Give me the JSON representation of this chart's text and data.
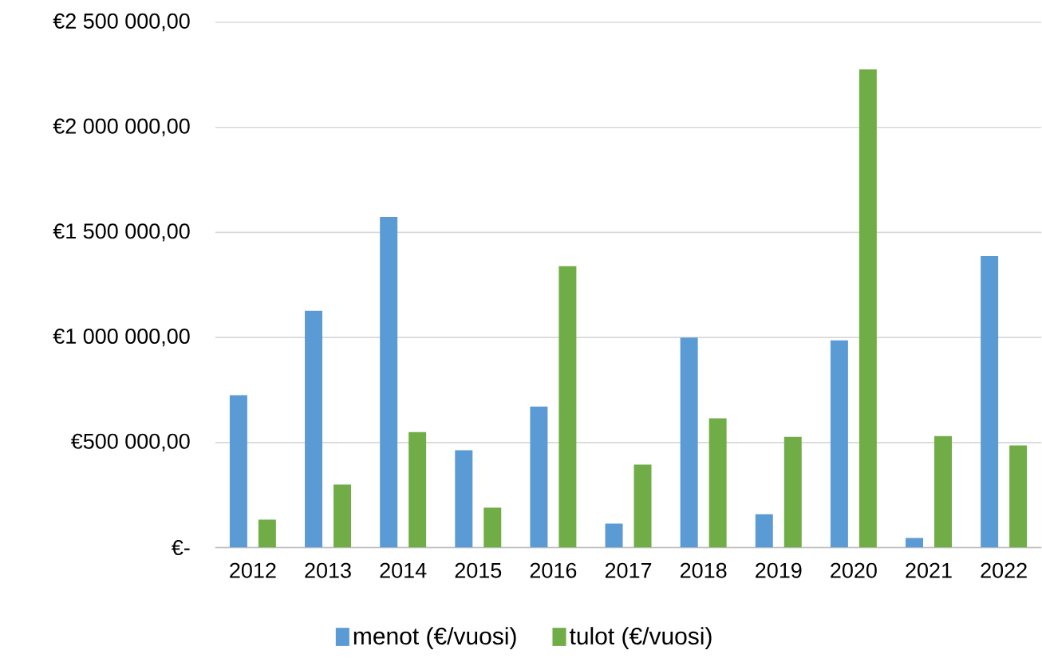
{
  "chart_data": {
    "type": "bar",
    "categories": [
      "2012",
      "2013",
      "2014",
      "2015",
      "2016",
      "2017",
      "2018",
      "2019",
      "2020",
      "2021",
      "2022"
    ],
    "series": [
      {
        "name": "menot (€/vuosi)",
        "color": "#5b9bd5",
        "values": [
          725000,
          1127000,
          1574000,
          463000,
          671000,
          114000,
          1000000,
          159000,
          986000,
          46000,
          1388000
        ]
      },
      {
        "name": "tulot (€/vuosi)",
        "color": "#70ad47",
        "values": [
          133000,
          300000,
          550000,
          190000,
          1339000,
          395000,
          615000,
          527000,
          2276000,
          531000,
          486000
        ]
      }
    ],
    "ylim": [
      0,
      2500000
    ],
    "yticks": [
      {
        "value": 0,
        "label": "€-"
      },
      {
        "value": 500000,
        "label": "€500 000,00"
      },
      {
        "value": 1000000,
        "label": "€1 000 000,00"
      },
      {
        "value": 1500000,
        "label": "€1 500 000,00"
      },
      {
        "value": 2000000,
        "label": "€2 000 000,00"
      },
      {
        "value": 2500000,
        "label": "€2 500 000,00"
      }
    ],
    "grid": "y",
    "legend": "bottom"
  }
}
